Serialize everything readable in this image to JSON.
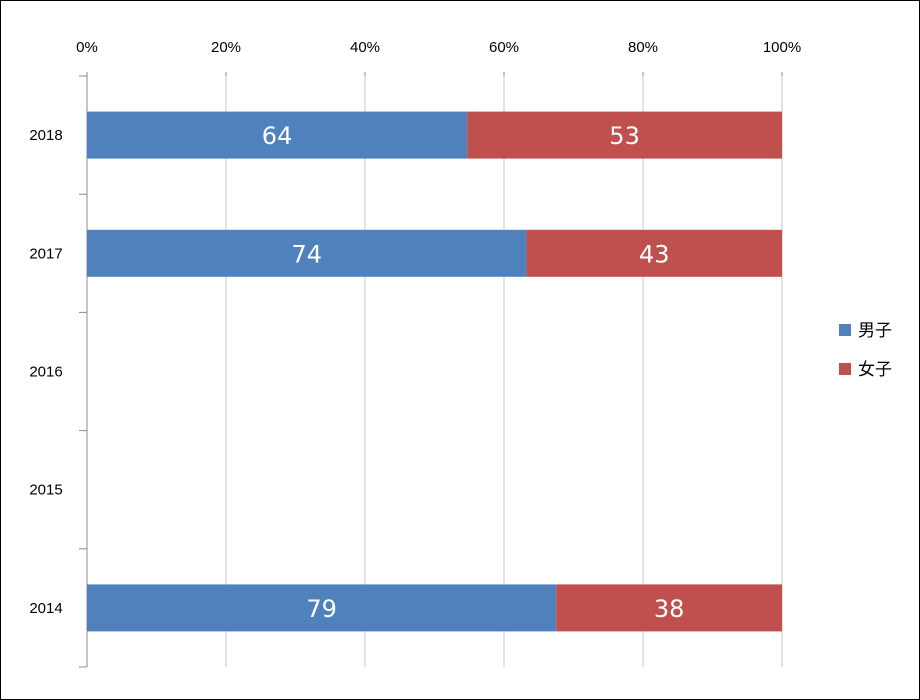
{
  "chart_data": {
    "type": "bar",
    "orientation": "horizontal",
    "stacking": "percent",
    "categories": [
      "2018",
      "2017",
      "2016",
      "2015",
      "2014"
    ],
    "series": [
      {
        "name": "男子",
        "color": "#4f81bd",
        "values": [
          64,
          74,
          null,
          null,
          79
        ]
      },
      {
        "name": "女子",
        "color": "#c0504d",
        "values": [
          53,
          43,
          null,
          null,
          38
        ]
      }
    ],
    "x_ticks": [
      "0%",
      "20%",
      "40%",
      "60%",
      "80%",
      "100%"
    ],
    "xlim": [
      0,
      100
    ],
    "grid": true,
    "legend_position": "right"
  }
}
